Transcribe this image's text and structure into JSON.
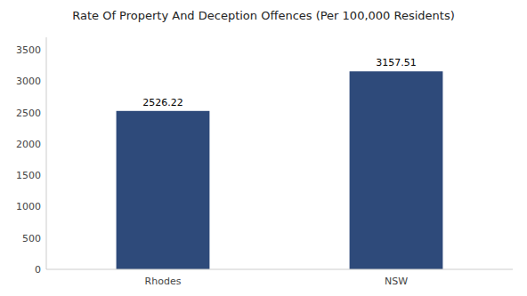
{
  "chart_data": {
    "type": "bar",
    "title": "Rate Of Property And Deception Offences (Per 100,000 Residents)",
    "categories": [
      "Rhodes",
      "NSW"
    ],
    "values": [
      2526.22,
      3157.51
    ],
    "color": "#2e4a7a",
    "ylim": [
      0,
      3700
    ],
    "yticks": [
      0,
      500,
      1000,
      1500,
      2000,
      2500,
      3000,
      3500
    ],
    "grid": false,
    "data_labels": true
  }
}
